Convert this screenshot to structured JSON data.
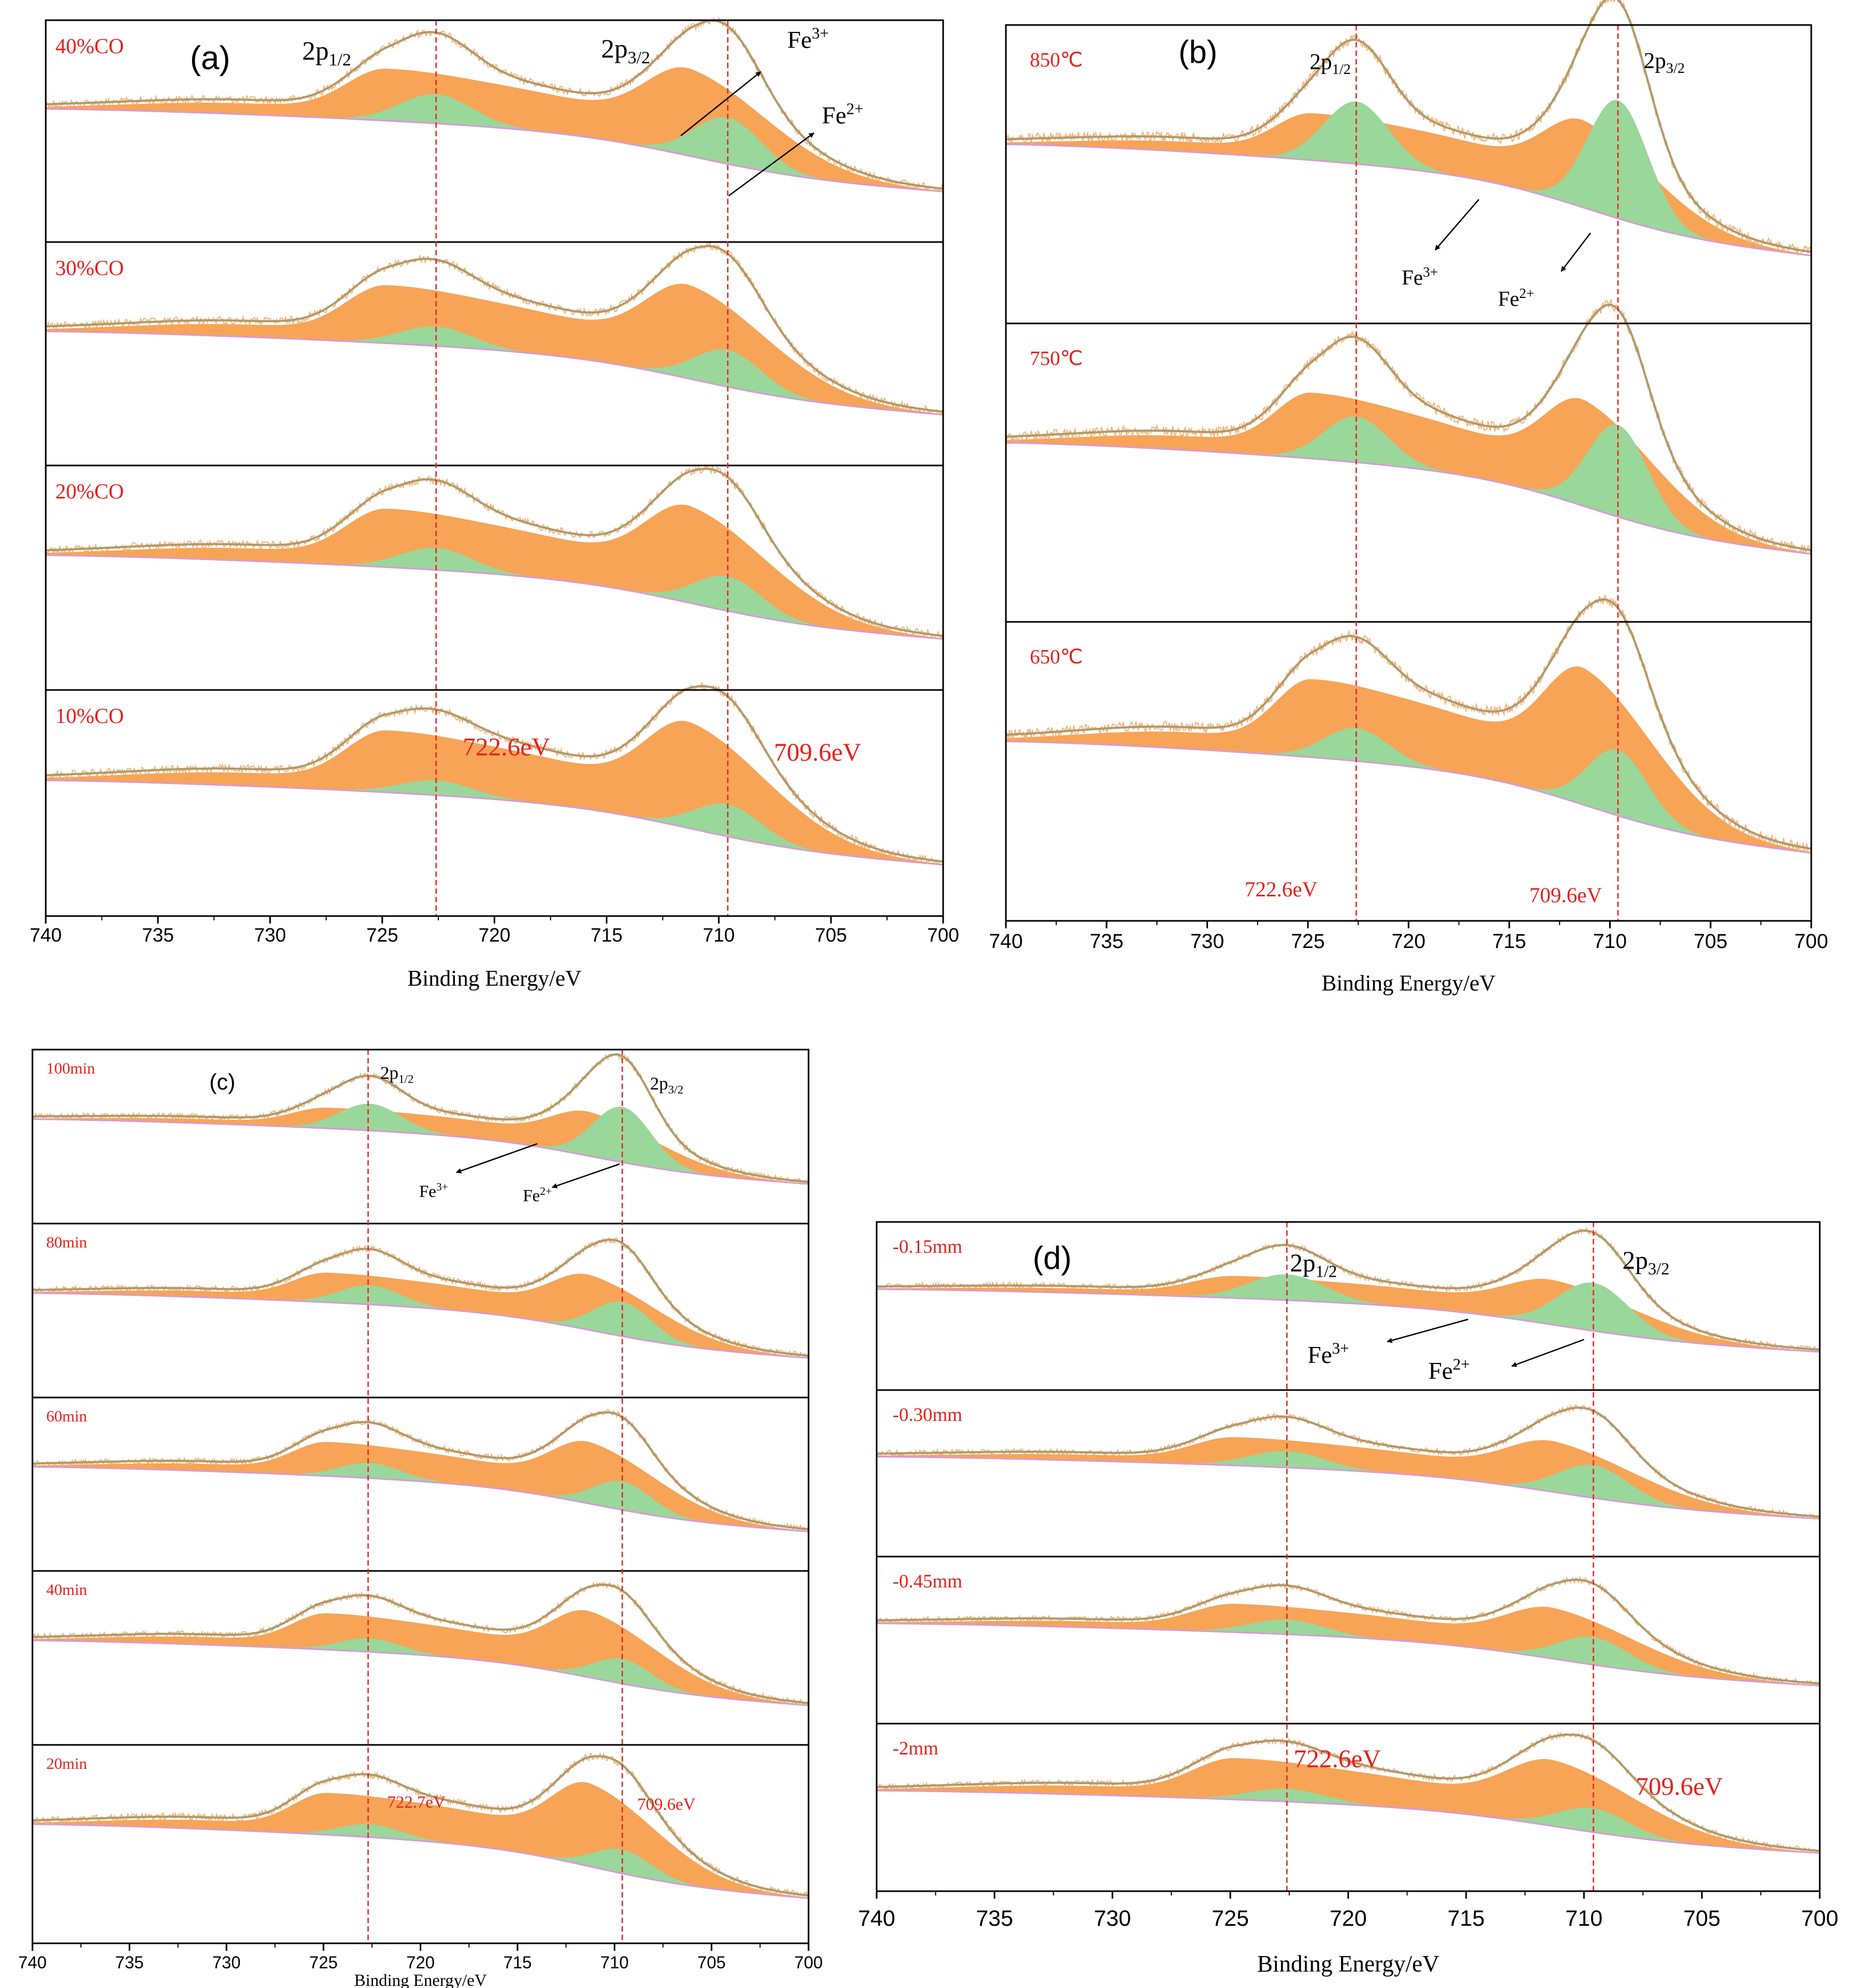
{
  "colors": {
    "label_red": "#e8201c",
    "fe3_fill": "#f7a456",
    "fe2_fill": "#9ad79a",
    "envelope": "#b09a6a",
    "raw": "#f3b27a",
    "baseline": "#d79ad8",
    "ref_line": "#e8201c"
  },
  "chart_data": [
    {
      "type": "line",
      "panel": "(a)",
      "xlabel": "Binding Energy/eV",
      "xlim": [
        740,
        700
      ],
      "xticks": [
        "740",
        "735",
        "730",
        "725",
        "720",
        "715",
        "710",
        "705",
        "700"
      ],
      "peak_labels": [
        "2p1/2",
        "2p3/2"
      ],
      "species_labels": [
        "Fe3+",
        "Fe2+"
      ],
      "ref_lines_eV": [
        722.6,
        709.6
      ],
      "ref_text": [
        "722.6eV",
        "709.6eV"
      ],
      "series": [
        {
          "name": "40%CO",
          "fe3_main_height": 0.62,
          "fe2_main_height": 0.38,
          "fe3_sat_height": 0.36,
          "fe2_sat_height": 0.24
        },
        {
          "name": "30%CO",
          "fe3_main_height": 0.66,
          "fe2_main_height": 0.3,
          "fe3_sat_height": 0.4,
          "fe2_sat_height": 0.16
        },
        {
          "name": "20%CO",
          "fe3_main_height": 0.68,
          "fe2_main_height": 0.28,
          "fe3_sat_height": 0.4,
          "fe2_sat_height": 0.18
        },
        {
          "name": "10%CO",
          "fe3_main_height": 0.74,
          "fe2_main_height": 0.26,
          "fe3_sat_height": 0.42,
          "fe2_sat_height": 0.12
        }
      ]
    },
    {
      "type": "line",
      "panel": "(b)",
      "xlabel": "Binding Energy/eV",
      "xlim": [
        740,
        700
      ],
      "xticks": [
        "740",
        "735",
        "730",
        "725",
        "720",
        "715",
        "710",
        "705",
        "700"
      ],
      "peak_labels": [
        "2p1/2",
        "2p3/2"
      ],
      "species_labels": [
        "Fe3+",
        "Fe2+"
      ],
      "ref_lines_eV": [
        722.6,
        709.6
      ],
      "ref_text": [
        "722.6eV",
        "709.6eV"
      ],
      "series": [
        {
          "name": "850℃",
          "fe3_main_height": 0.46,
          "fe2_main_height": 0.72,
          "fe3_sat_height": 0.24,
          "fe2_sat_height": 0.38
        },
        {
          "name": "750℃",
          "fe3_main_height": 0.56,
          "fe2_main_height": 0.56,
          "fe3_sat_height": 0.34,
          "fe2_sat_height": 0.28
        },
        {
          "name": "650℃",
          "fe3_main_height": 0.72,
          "fe2_main_height": 0.4,
          "fe3_sat_height": 0.4,
          "fe2_sat_height": 0.2
        }
      ]
    },
    {
      "type": "line",
      "panel": "(c)",
      "xlabel": "Binding Energy/eV",
      "xlim": [
        740,
        700
      ],
      "xticks": [
        "740",
        "735",
        "730",
        "725",
        "720",
        "715",
        "710",
        "705",
        "700"
      ],
      "peak_labels": [
        "2p1/2",
        "2p3/2"
      ],
      "species_labels": [
        "Fe3+",
        "Fe2+"
      ],
      "ref_lines_eV": [
        722.7,
        709.6
      ],
      "ref_text": [
        "722.7eV",
        "709.6eV"
      ],
      "series": [
        {
          "name": "100min",
          "fe3_main_height": 0.4,
          "fe2_main_height": 0.58,
          "fe3_sat_height": 0.18,
          "fe2_sat_height": 0.28
        },
        {
          "name": "80min",
          "fe3_main_height": 0.5,
          "fe2_main_height": 0.36,
          "fe3_sat_height": 0.26,
          "fe2_sat_height": 0.2
        },
        {
          "name": "60min",
          "fe3_main_height": 0.56,
          "fe2_main_height": 0.3,
          "fe3_sat_height": 0.3,
          "fe2_sat_height": 0.16
        },
        {
          "name": "40min",
          "fe3_main_height": 0.6,
          "fe2_main_height": 0.26,
          "fe3_sat_height": 0.32,
          "fe2_sat_height": 0.14
        },
        {
          "name": "20min",
          "fe3_main_height": 0.66,
          "fe2_main_height": 0.22,
          "fe3_sat_height": 0.32,
          "fe2_sat_height": 0.12
        }
      ]
    },
    {
      "type": "line",
      "panel": "(d)",
      "xlabel": "Binding Energy/eV",
      "xlim": [
        740,
        700
      ],
      "xticks": [
        "740",
        "735",
        "730",
        "725",
        "720",
        "715",
        "710",
        "705",
        "700"
      ],
      "peak_labels": [
        "2p1/2",
        "2p3/2"
      ],
      "species_labels": [
        "Fe3+",
        "Fe2+"
      ],
      "ref_lines_eV": [
        722.6,
        709.6
      ],
      "ref_text": [
        "722.6eV",
        "709.6eV"
      ],
      "series": [
        {
          "name": "-0.15mm",
          "fe3_main_height": 0.42,
          "fe2_main_height": 0.52,
          "fe3_sat_height": 0.2,
          "fe2_sat_height": 0.28
        },
        {
          "name": "-0.30mm",
          "fe3_main_height": 0.48,
          "fe2_main_height": 0.36,
          "fe3_sat_height": 0.26,
          "fe2_sat_height": 0.18
        },
        {
          "name": "-0.45mm",
          "fe3_main_height": 0.48,
          "fe2_main_height": 0.3,
          "fe3_sat_height": 0.26,
          "fe2_sat_height": 0.16
        },
        {
          "name": "-2mm",
          "fe3_main_height": 0.62,
          "fe2_main_height": 0.26,
          "fe3_sat_height": 0.38,
          "fe2_sat_height": 0.14
        }
      ]
    }
  ]
}
